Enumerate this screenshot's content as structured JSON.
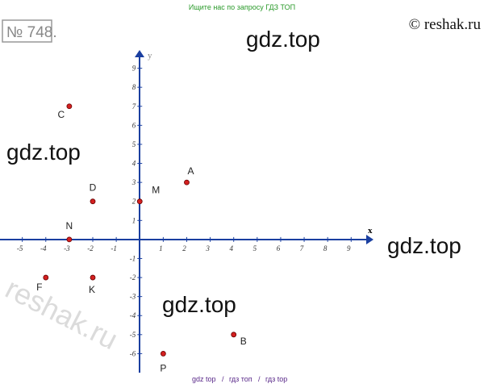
{
  "header": {
    "number": "№ 748.",
    "search_note": "Ищите нас по запросу ГДЗ ТОП",
    "copyright": "© reshak.ru"
  },
  "watermarks": [
    "gdz.top",
    "gdz.top",
    "gdz.top",
    "gdz.top",
    "reshak.ru"
  ],
  "footer": [
    "gdz top",
    "/",
    "гдз топ",
    "/",
    "гдз top"
  ],
  "chart_data": {
    "type": "scatter",
    "x_label": "x",
    "y_label": "y",
    "labels": [
      "A",
      "B",
      "C",
      "D",
      "M",
      "N",
      "F",
      "K",
      "P"
    ],
    "x": [
      2,
      4,
      -3,
      -2,
      0,
      -3,
      -4,
      -2,
      1
    ],
    "values": [
      3,
      -5,
      7,
      2,
      2,
      0,
      -2,
      -2,
      -6
    ],
    "color": "#d42020",
    "xlim": [
      -5.95,
      9.9
    ],
    "ylim": [
      -7,
      10
    ],
    "xticks": [
      -5,
      -4,
      -3,
      -2,
      -1,
      1,
      2,
      3,
      4,
      5,
      6,
      7,
      8,
      9
    ],
    "yticks": [
      -6,
      -5,
      -4,
      -3,
      -2,
      -1,
      1,
      2,
      3,
      4,
      5,
      6,
      7,
      8,
      9
    ],
    "grid": false
  }
}
